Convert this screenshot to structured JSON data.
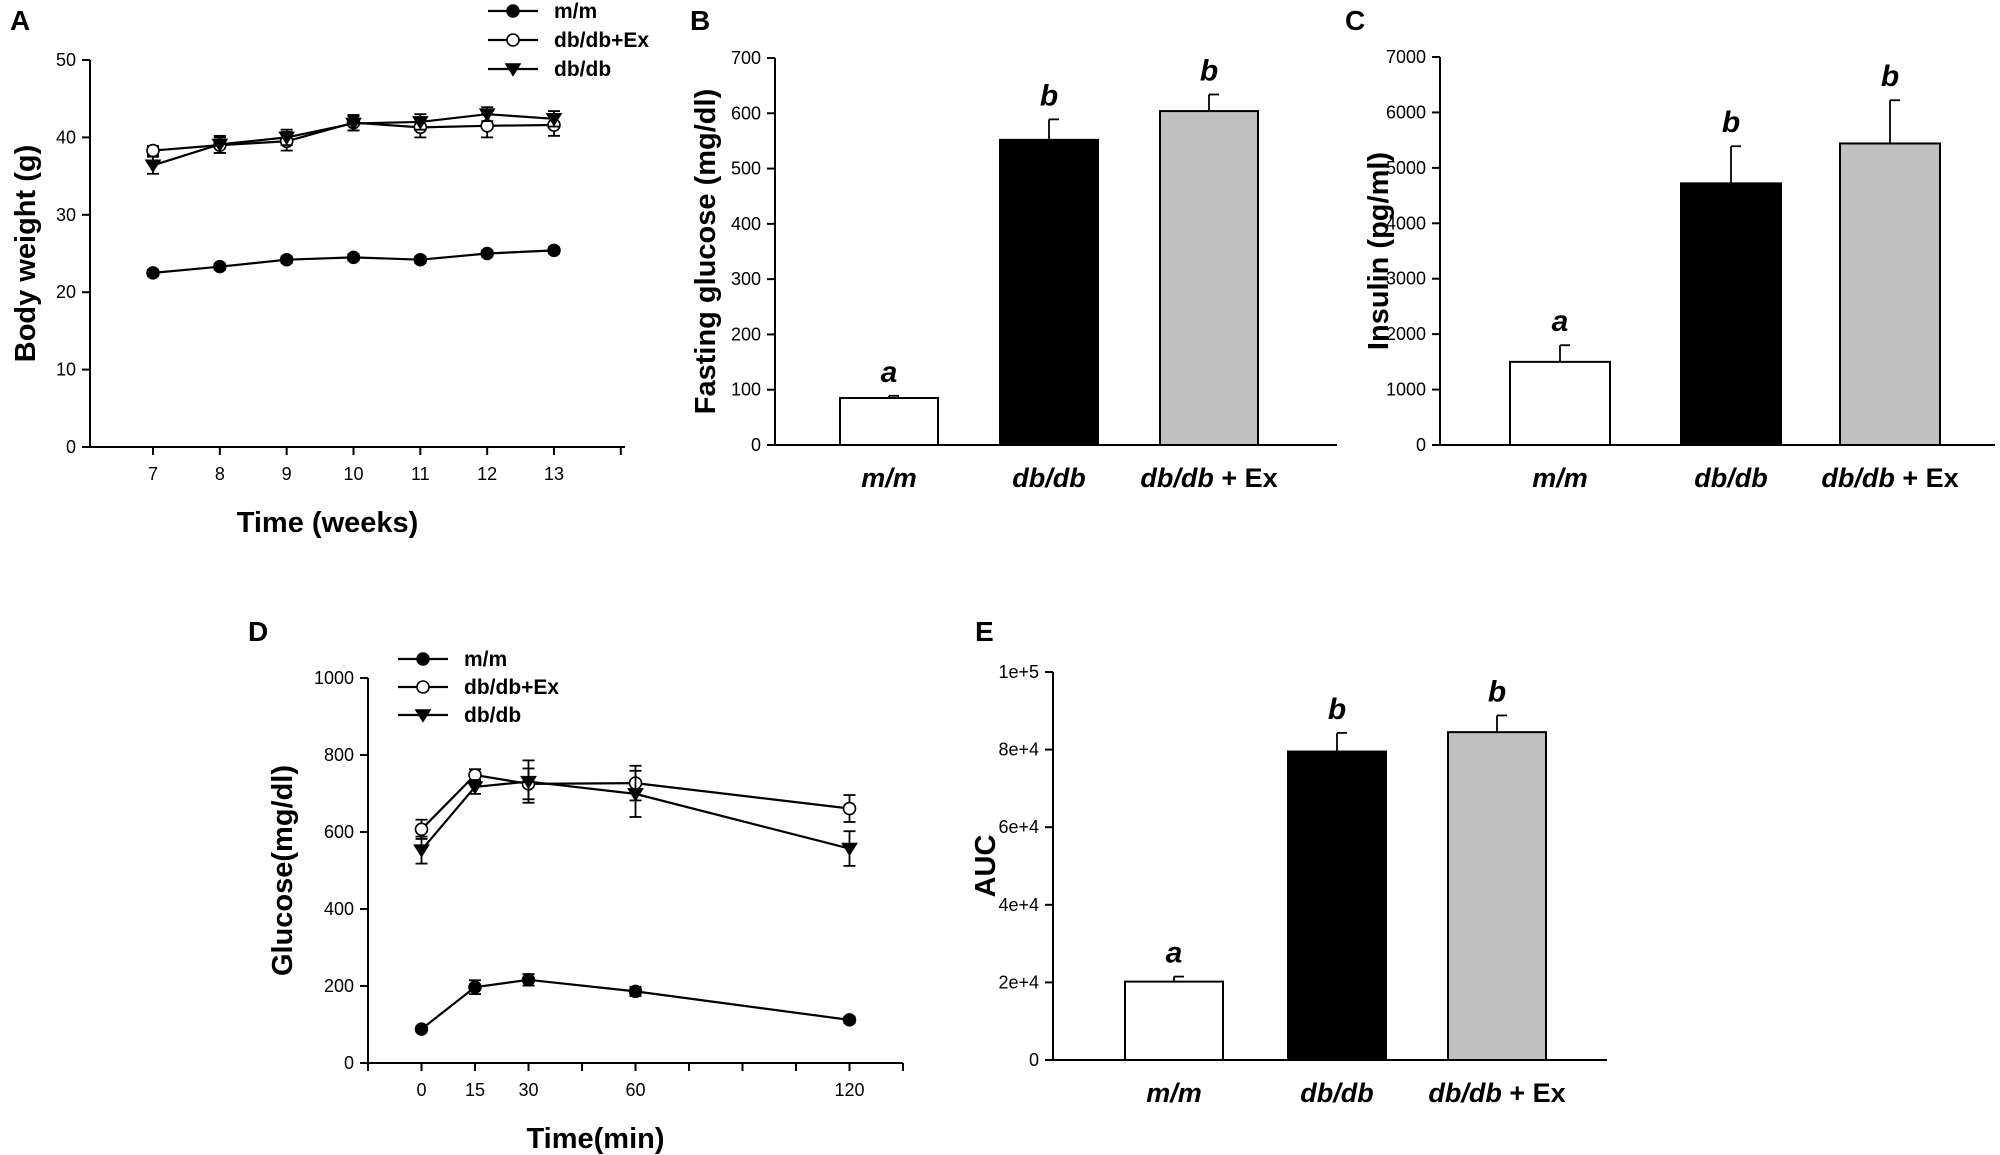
{
  "chart_data": [
    {
      "id": "A",
      "type": "line",
      "panel_label": "A",
      "xlabel": "Time (weeks)",
      "ylabel": "Body weight (g)",
      "x": [
        7,
        8,
        9,
        10,
        11,
        12,
        13
      ],
      "xticks": [
        "7",
        "8",
        "9",
        "10",
        "11",
        "12",
        "13"
      ],
      "ylim": [
        0,
        50
      ],
      "yticks": [
        "0",
        "10",
        "20",
        "30",
        "40",
        "50"
      ],
      "legend_position": "top-right",
      "series": [
        {
          "name": "m/m",
          "marker": "filled-circle",
          "values": [
            22.5,
            23.3,
            24.2,
            24.5,
            24.2,
            25.0,
            25.4
          ],
          "errors": [
            0.4,
            0.4,
            0.4,
            0.4,
            0.4,
            0.4,
            0.4
          ]
        },
        {
          "name": "db/db+Ex",
          "marker": "open-circle",
          "values": [
            38.3,
            39.0,
            39.5,
            41.9,
            41.3,
            41.5,
            41.6
          ],
          "errors": [
            0.6,
            1.0,
            1.2,
            1.0,
            1.3,
            1.5,
            1.4
          ]
        },
        {
          "name": "db/db",
          "marker": "filled-triangle",
          "values": [
            36.4,
            39.1,
            40.0,
            41.8,
            42.0,
            43.0,
            42.4
          ],
          "errors": [
            1.1,
            1.1,
            1.0,
            0.9,
            1.0,
            0.9,
            1.0
          ]
        }
      ]
    },
    {
      "id": "B",
      "type": "bar",
      "panel_label": "B",
      "ylabel": "Fasting glucose (mg/dl)",
      "ylim": [
        0,
        700
      ],
      "yticks": [
        "0",
        "100",
        "200",
        "300",
        "400",
        "500",
        "600",
        "700"
      ],
      "categories": [
        {
          "italic": "m/m",
          "suffix": ""
        },
        {
          "italic": "db/db",
          "suffix": ""
        },
        {
          "italic": "db/db",
          "suffix": " + Ex"
        }
      ],
      "values": [
        85,
        552,
        604
      ],
      "errors": [
        4,
        37,
        30
      ],
      "bar_colors": [
        "#ffffff",
        "#000000",
        "#c0c0c0"
      ],
      "significance": [
        "a",
        "b",
        "b"
      ]
    },
    {
      "id": "C",
      "type": "bar",
      "panel_label": "C",
      "ylabel": "Insulin (pg/ml)",
      "ylim": [
        0,
        7000
      ],
      "yticks": [
        "0",
        "1000",
        "2000",
        "3000",
        "4000",
        "5000",
        "6000",
        "7000"
      ],
      "categories": [
        {
          "italic": "m/m",
          "suffix": ""
        },
        {
          "italic": "db/db",
          "suffix": ""
        },
        {
          "italic": "db/db",
          "suffix": " + Ex"
        }
      ],
      "values": [
        1500,
        4720,
        5440
      ],
      "errors": [
        300,
        670,
        780
      ],
      "bar_colors": [
        "#ffffff",
        "#000000",
        "#c0c0c0"
      ],
      "significance": [
        "a",
        "b",
        "b"
      ]
    },
    {
      "id": "D",
      "type": "line",
      "panel_label": "D",
      "xlabel": "Time(min)",
      "ylabel": "Glucose(mg/dl)",
      "x": [
        0,
        15,
        30,
        60,
        120
      ],
      "xticks": [
        "0",
        "15",
        "30",
        "60",
        "120"
      ],
      "xlim": [
        -15,
        135
      ],
      "ylim": [
        0,
        1000
      ],
      "yticks": [
        "0",
        "200",
        "400",
        "600",
        "800",
        "1000"
      ],
      "legend_position": "top-left",
      "series": [
        {
          "name": "m/m",
          "marker": "filled-circle",
          "values": [
            88,
            197,
            216,
            186,
            112
          ],
          "errors": [
            5,
            18,
            15,
            12,
            8
          ]
        },
        {
          "name": "db/db+Ex",
          "marker": "open-circle",
          "values": [
            607,
            748,
            725,
            727,
            661
          ],
          "errors": [
            25,
            15,
            40,
            45,
            35
          ]
        },
        {
          "name": "db/db",
          "marker": "filled-triangle",
          "values": [
            553,
            717,
            731,
            699,
            557
          ],
          "errors": [
            35,
            18,
            55,
            60,
            45
          ]
        }
      ]
    },
    {
      "id": "E",
      "type": "bar",
      "panel_label": "E",
      "ylabel": "AUC",
      "ylim": [
        0,
        100000
      ],
      "yticks": [
        "0",
        "2e+4",
        "4e+4",
        "6e+4",
        "8e+4",
        "1e+5"
      ],
      "categories": [
        {
          "italic": "m/m",
          "suffix": ""
        },
        {
          "italic": "db/db",
          "suffix": ""
        },
        {
          "italic": "db/db",
          "suffix": " + Ex"
        }
      ],
      "values": [
        20200,
        79500,
        84500
      ],
      "errors": [
        1300,
        4800,
        4300
      ],
      "bar_colors": [
        "#ffffff",
        "#000000",
        "#c0c0c0"
      ],
      "significance": [
        "a",
        "b",
        "b"
      ]
    }
  ]
}
